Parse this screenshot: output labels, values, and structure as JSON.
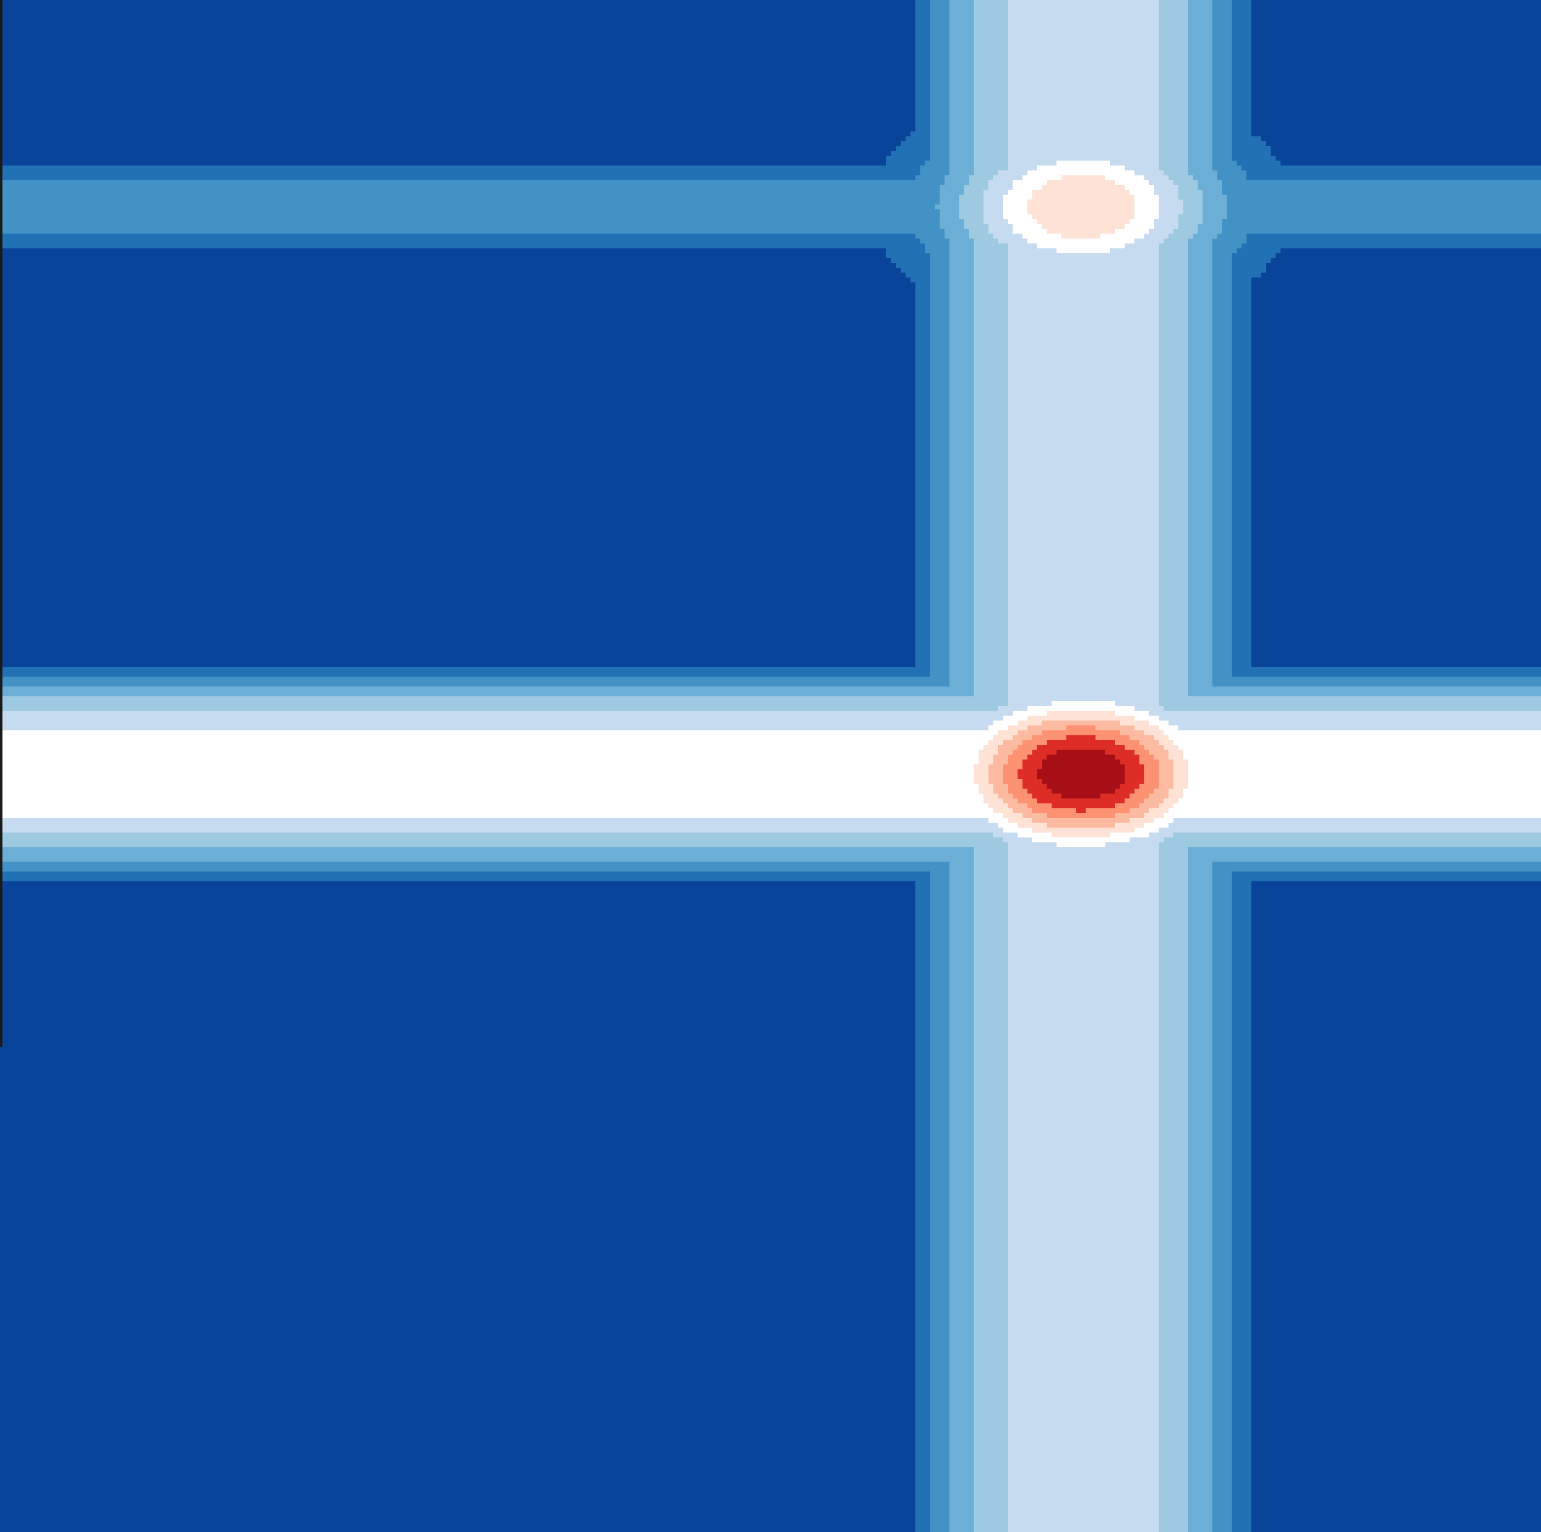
{
  "chart_data": {
    "type": "heatmap",
    "subtype": "filled-contour",
    "colormap": "RdBu_r",
    "title": "",
    "xlabel": "",
    "ylabel": "",
    "xlim": [
      0,
      1
    ],
    "ylim": [
      0,
      1
    ],
    "grid": false,
    "legend": "none",
    "levels": [
      {
        "level": 0,
        "color": "#08459a"
      },
      {
        "level": 1,
        "color": "#2271b5"
      },
      {
        "level": 2,
        "color": "#4292c6"
      },
      {
        "level": 3,
        "color": "#6baed6"
      },
      {
        "level": 4,
        "color": "#9ecae1"
      },
      {
        "level": 5,
        "color": "#c6dbef"
      },
      {
        "level": 6,
        "color": "#ffffff"
      },
      {
        "level": 7,
        "color": "#fee2d5"
      },
      {
        "level": 8,
        "color": "#fcbba1"
      },
      {
        "level": 9,
        "color": "#fc9272"
      },
      {
        "level": 10,
        "color": "#de2d26"
      },
      {
        "level": 11,
        "color": "#a50f15"
      }
    ],
    "field": {
      "vertical_band": {
        "x_center": 0.702,
        "width": 0.24,
        "peak_level": 5
      },
      "horizontal_bands": [
        {
          "y_center": 0.865,
          "height": 0.063,
          "peak_level": 2
        },
        {
          "y_center": 0.495,
          "height": 0.15,
          "peak_level": 6
        }
      ],
      "peaks": [
        {
          "x": 0.702,
          "y": 0.865,
          "level": 7
        },
        {
          "x": 0.702,
          "y": 0.495,
          "level": 11
        }
      ]
    }
  }
}
